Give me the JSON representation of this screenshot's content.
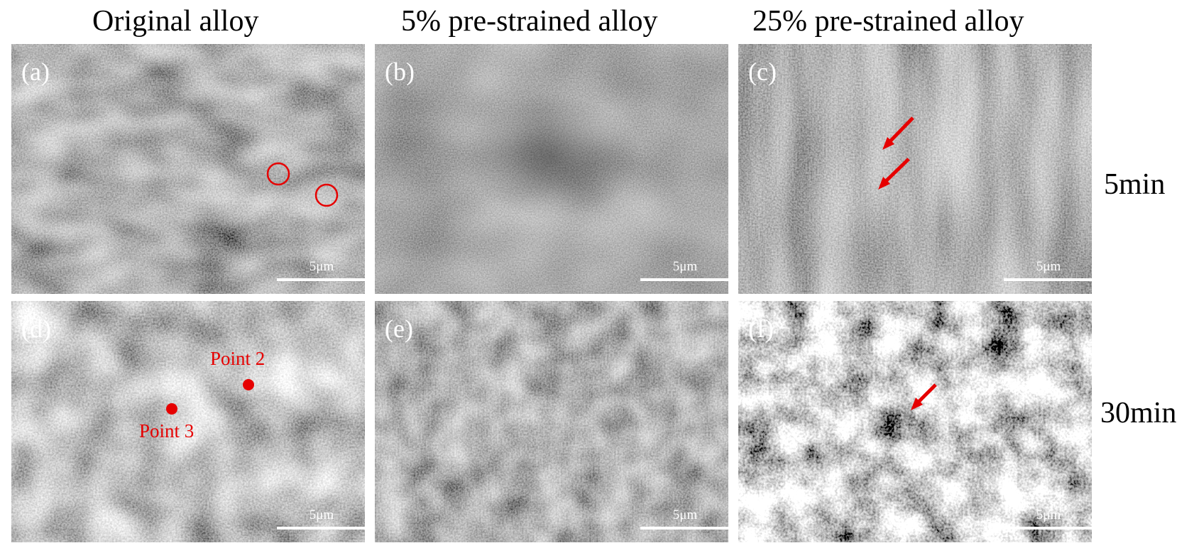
{
  "columns": [
    {
      "title": "Original alloy"
    },
    {
      "title": "5% pre-strained alloy"
    },
    {
      "title": "25% pre-strained alloy"
    }
  ],
  "rows": [
    {
      "label": "5min"
    },
    {
      "label": "30min"
    }
  ],
  "panels": [
    {
      "letter": "(a)",
      "scale": "5μm"
    },
    {
      "letter": "(b)",
      "scale": "5μm"
    },
    {
      "letter": "(c)",
      "scale": "5μm"
    },
    {
      "letter": "(d)",
      "scale": "5μm"
    },
    {
      "letter": "(e)",
      "scale": "5μm"
    },
    {
      "letter": "(f)",
      "scale": "5μm"
    }
  ],
  "annotations": {
    "point2": "Point 2",
    "point3": "Point 3"
  },
  "colors": {
    "annotation": "#e60000",
    "background": "#ffffff"
  }
}
